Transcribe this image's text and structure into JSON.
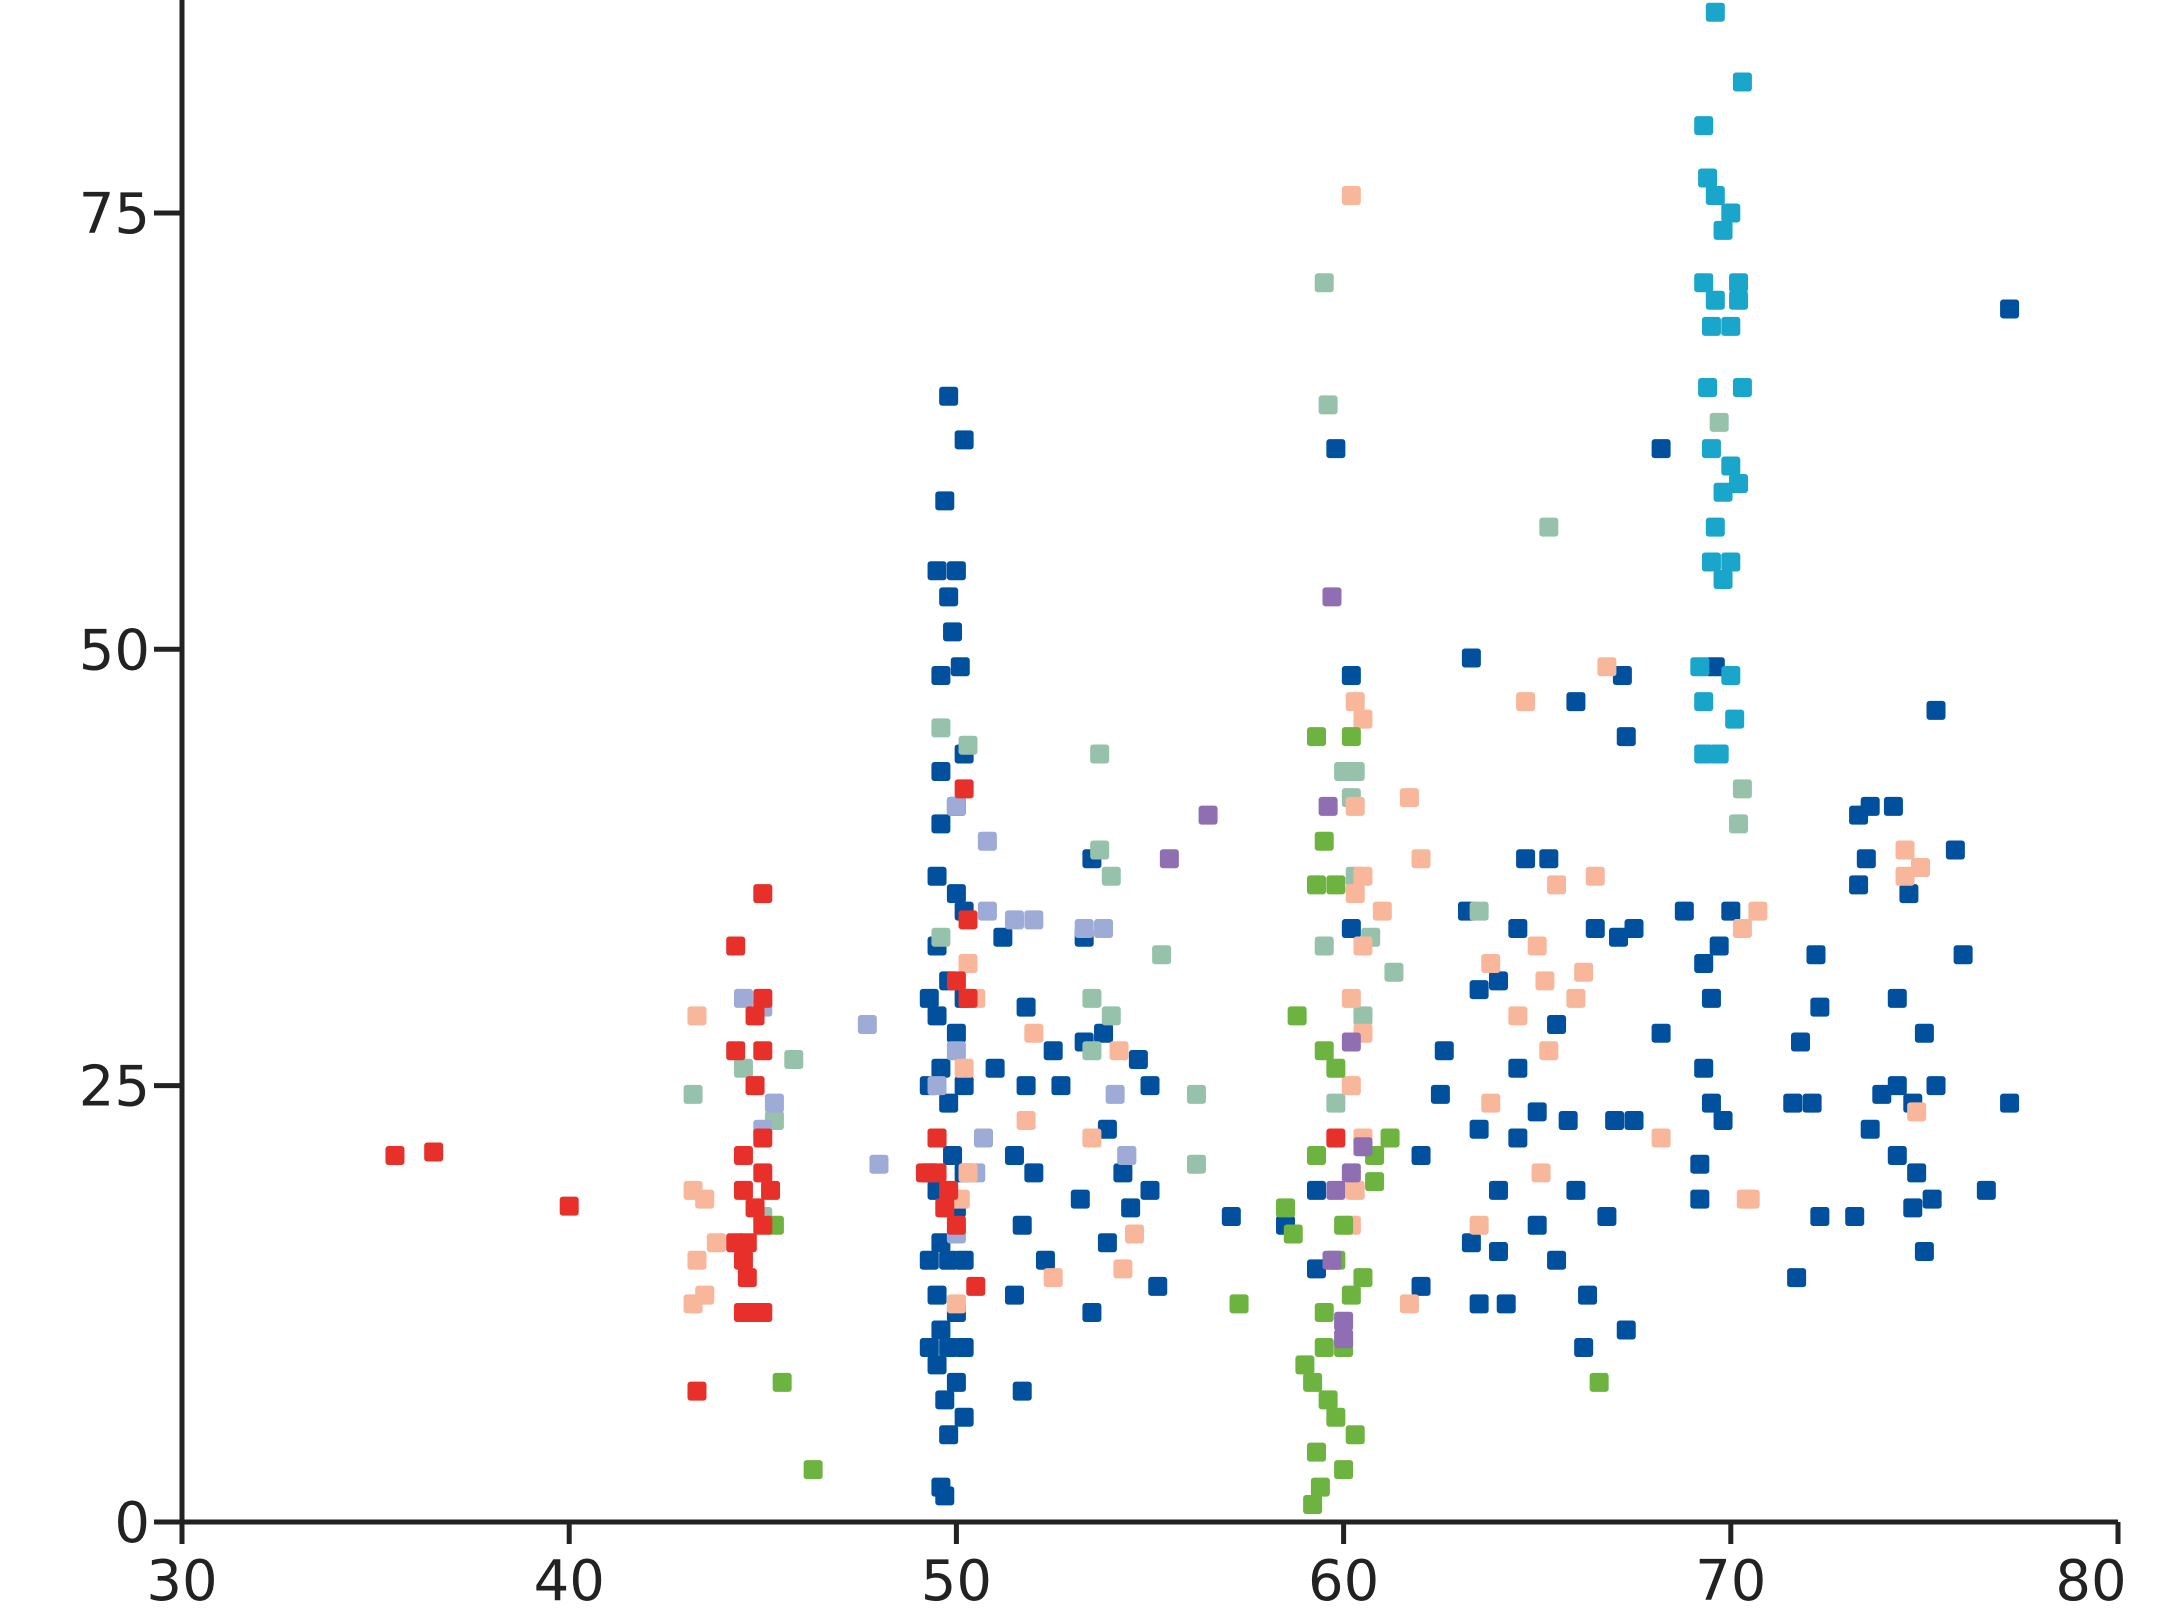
{
  "chart_data": {
    "type": "scatter",
    "xlim": [
      30,
      80
    ],
    "ylim": [
      0,
      87.2
    ],
    "xticks": [
      30,
      40,
      50,
      60,
      70,
      80
    ],
    "yticks": [
      0,
      25,
      50,
      75
    ],
    "series": [
      {
        "color": "#00509e",
        "x": [
          49.8,
          50.2,
          49.7,
          49.5,
          50,
          49.8,
          49.9,
          49.6,
          50.1,
          50.2,
          49.6,
          50,
          49.6,
          49.5,
          50,
          50.2,
          49.5,
          49.8,
          49.5,
          50,
          49.6,
          49.8,
          49.5,
          49.9,
          49.5,
          50,
          49.6,
          49.8,
          49.5,
          50,
          49.6,
          49.8,
          49.5,
          50,
          49.7,
          49.8,
          50.2,
          49.6,
          49.7,
          49.3,
          49.3,
          49.3,
          49.3,
          49.3,
          50.2,
          50.2,
          50.2,
          50.2,
          50.2,
          51,
          51.2,
          51.5,
          51.8,
          51.8,
          51.7,
          51.5,
          51.7,
          52,
          52.3,
          52.5,
          52.7,
          53.3,
          53.3,
          53.2,
          53.5,
          53.5,
          53.8,
          53.9,
          53.9,
          54.3,
          54.5,
          54.7,
          55,
          55,
          55.2,
          57.1,
          58.5,
          59.3,
          59.3,
          59.8,
          60.2,
          60.2,
          62,
          62,
          62.5,
          62.6,
          63.2,
          63.5,
          63.5,
          63.3,
          63.5,
          63.3,
          64,
          64,
          64.2,
          64,
          64.5,
          64.7,
          64.5,
          64.5,
          65,
          65.3,
          65,
          65.5,
          65.5,
          65.8,
          66,
          66,
          66.2,
          66.5,
          66.3,
          66.8,
          67,
          67.1,
          67.2,
          67.3,
          67.5,
          67.3,
          67.5,
          68.2,
          68.2,
          68.8,
          69.2,
          69.2,
          69.3,
          69.3,
          69.5,
          69.6,
          69.5,
          69.7,
          69.8,
          70,
          71.6,
          71.7,
          71.8,
          72.1,
          72.3,
          72.2,
          72.3,
          73.2,
          73.3,
          73.3,
          73.6,
          73.5,
          73.6,
          73.9,
          74.2,
          74.3,
          74.3,
          74.3,
          74.6,
          74.7,
          74.8,
          74.7,
          75,
          75,
          75.3,
          75.2,
          75.3,
          75.8,
          76,
          76.6,
          77.2,
          77.2
        ],
        "values": [
          64.5,
          62,
          58.5,
          54.5,
          54.5,
          53,
          51,
          48.5,
          49,
          44,
          43,
          41,
          40,
          37,
          36,
          35,
          33,
          31,
          29,
          28,
          26,
          24,
          22,
          21,
          19,
          18,
          16,
          15,
          13,
          12,
          11,
          10,
          9,
          8,
          7,
          5,
          6,
          2,
          1.5,
          30,
          25,
          20,
          15,
          10,
          30,
          25,
          20,
          15,
          10,
          26,
          33.5,
          21,
          29.5,
          25,
          17,
          13,
          7.5,
          20,
          15,
          27,
          25,
          33.5,
          27.5,
          18.5,
          12,
          38,
          28,
          22.5,
          16,
          20,
          18,
          26.5,
          25,
          19,
          13.5,
          17.5,
          17,
          19,
          14.5,
          61.5,
          48.5,
          34,
          21,
          13.5,
          24.5,
          27,
          35,
          30.5,
          22.5,
          16,
          12.5,
          49.5,
          19,
          15.5,
          12.5,
          31,
          34,
          38,
          26,
          22,
          23.5,
          38,
          17,
          28.5,
          15,
          23,
          47,
          19,
          10,
          34,
          13,
          17.5,
          23,
          33.5,
          48.5,
          45,
          34,
          11,
          23,
          61.5,
          28,
          35,
          20.5,
          18.5,
          32,
          26,
          24,
          49,
          30,
          33,
          23,
          35,
          24,
          14,
          27.5,
          24,
          29.5,
          32.5,
          17.5,
          17.5,
          36.5,
          40.5,
          41,
          38,
          22.5,
          24.5,
          41,
          30,
          25,
          21,
          36,
          24,
          20,
          18,
          28,
          15.5,
          25,
          18.5,
          46.5,
          38.5,
          32.5,
          19,
          24,
          69.5
        ]
      },
      {
        "color": "#96c2ab",
        "x": [
          43.2,
          44.5,
          45.3,
          45.8,
          49.6,
          50.3,
          49.6,
          53.5,
          53.5,
          53.7,
          53.7,
          54,
          54,
          54.4,
          55.3,
          56.2,
          56.2,
          59.5,
          59.6,
          59.5,
          60,
          60.3,
          60.2,
          60.3,
          60.7,
          61.3,
          59.8,
          60.5,
          65.3,
          69.7,
          70.2,
          70.3,
          63.5,
          45
        ],
        "values": [
          24.5,
          26,
          23,
          26.5,
          45.5,
          44.5,
          33.5,
          27,
          30,
          38.5,
          44,
          37,
          29,
          21,
          32.5,
          20.5,
          24.5,
          71,
          64,
          33,
          43,
          43,
          41.5,
          37,
          33.5,
          31.5,
          24,
          29,
          57,
          63,
          40,
          42,
          35,
          17.5
        ]
      },
      {
        "color": "#9dabd6",
        "x": [
          44.5,
          45,
          44.8,
          45.3,
          45,
          47.7,
          48,
          50,
          50.8,
          50.8,
          50,
          50.5,
          50,
          51.5,
          49.5,
          53.3,
          53.8,
          54.1,
          54.4,
          52,
          50.7
        ],
        "values": [
          30,
          29.5,
          25,
          24,
          22.5,
          28.5,
          20.5,
          41,
          39,
          35,
          27,
          20,
          16.5,
          34.5,
          25,
          34,
          34,
          24.5,
          21,
          34.5,
          22
        ]
      },
      {
        "color": "#f8b69b",
        "x": [
          43.3,
          43.2,
          43.5,
          43.3,
          43.2,
          43.5,
          43.8,
          50.3,
          50.5,
          50.2,
          50.3,
          50.1,
          50,
          51.8,
          52,
          52.5,
          53.5,
          54.2,
          54.3,
          54.6,
          60.2,
          60.3,
          60.5,
          60.3,
          60.5,
          60.3,
          61,
          60.5,
          60.2,
          60.5,
          60.2,
          60.5,
          60.3,
          60.2,
          61.7,
          62,
          61.7,
          63.8,
          63.8,
          64.5,
          65,
          65.2,
          65.3,
          65.1,
          65.5,
          66.2,
          66.5,
          66.8,
          68.2,
          64.7,
          70.7,
          70.3,
          70.4,
          70.5,
          74.5,
          74.8,
          74.5,
          74.9,
          66,
          63.5
        ],
        "values": [
          29,
          19,
          18.5,
          15,
          12.5,
          13,
          16,
          32,
          30,
          26,
          20,
          18.5,
          12.5,
          23,
          28,
          14,
          22,
          27,
          14.5,
          16.5,
          76,
          47,
          46,
          41,
          37,
          36,
          35,
          33,
          30,
          28,
          25,
          22,
          19,
          17,
          41.5,
          38,
          12.5,
          32,
          24,
          29,
          33,
          31,
          27,
          20,
          36.5,
          31.5,
          37,
          49,
          22,
          47,
          35,
          34,
          18.5,
          18.5,
          38.5,
          23.5,
          37,
          37.5,
          30,
          17
        ]
      },
      {
        "color": "#6db33f",
        "x": [
          45.5,
          46.3,
          45.3,
          57.3,
          58.8,
          59.3,
          59.5,
          59.3,
          59.8,
          60.2,
          59.5,
          59.8,
          59.3,
          58.5,
          58.7,
          59.5,
          59.5,
          59.2,
          59.8,
          59.3,
          60,
          59.2,
          60.5,
          60,
          60.8,
          61.2,
          60,
          59.8,
          60.2,
          59.6,
          60.3,
          59.4,
          66.6,
          60.8,
          59
        ],
        "values": [
          8,
          3,
          17,
          12.5,
          29,
          45,
          39,
          36.5,
          36.5,
          45,
          27,
          26,
          21,
          18,
          16.5,
          12,
          10,
          8,
          6,
          4,
          3,
          1,
          14,
          17,
          19.5,
          22,
          10,
          15,
          13,
          7,
          5,
          2,
          8,
          21,
          9
        ]
      },
      {
        "color": "#8f6fb1",
        "x": [
          56.5,
          55.5,
          59.7,
          59.6,
          60.2,
          60.5,
          60.2,
          59.7,
          60,
          60,
          59.8
        ],
        "values": [
          40.5,
          38,
          53,
          41,
          27.5,
          21.5,
          20,
          15,
          11.5,
          10.5,
          19
        ]
      },
      {
        "color": "#e8302a",
        "x": [
          35.5,
          36.5,
          40,
          43.3,
          44.3,
          44.3,
          44.5,
          44.5,
          44.3,
          44.5,
          44.5,
          44.8,
          45,
          45,
          45,
          44.8,
          45,
          44.8,
          45,
          45,
          45.2,
          44.8,
          45,
          44.6,
          44.6,
          49.5,
          49.8,
          50,
          49.5,
          50.2,
          50.3,
          50,
          50.3,
          49.7,
          50.5,
          49.2,
          59.8
        ],
        "values": [
          21,
          21.2,
          18.1,
          7.5,
          33,
          27,
          21,
          19,
          16,
          15,
          12,
          12,
          12,
          36,
          30,
          29,
          27,
          25,
          22,
          20,
          19,
          18,
          17,
          16,
          14,
          20,
          19,
          17,
          22,
          42,
          34.5,
          31,
          30,
          18,
          13.5,
          20,
          22
        ]
      },
      {
        "color": "#1aa6ca",
        "x": [
          69.6,
          70.3,
          69.3,
          69.4,
          69.6,
          70,
          69.8,
          69.3,
          69.6,
          70.2,
          70.2,
          69.5,
          70,
          70.3,
          69.4,
          69.5,
          70,
          69.8,
          70.2,
          69.6,
          69.5,
          69.8,
          70,
          69.2,
          70,
          69.3,
          70.1,
          69.3,
          69.7
        ],
        "values": [
          86.5,
          82.5,
          80,
          77,
          76,
          75,
          74,
          71,
          70,
          70,
          71,
          68.5,
          68.5,
          65,
          65,
          61.5,
          60.5,
          59,
          59.5,
          57,
          55,
          54,
          55,
          49,
          48.5,
          47,
          46,
          44,
          44
        ]
      }
    ]
  }
}
